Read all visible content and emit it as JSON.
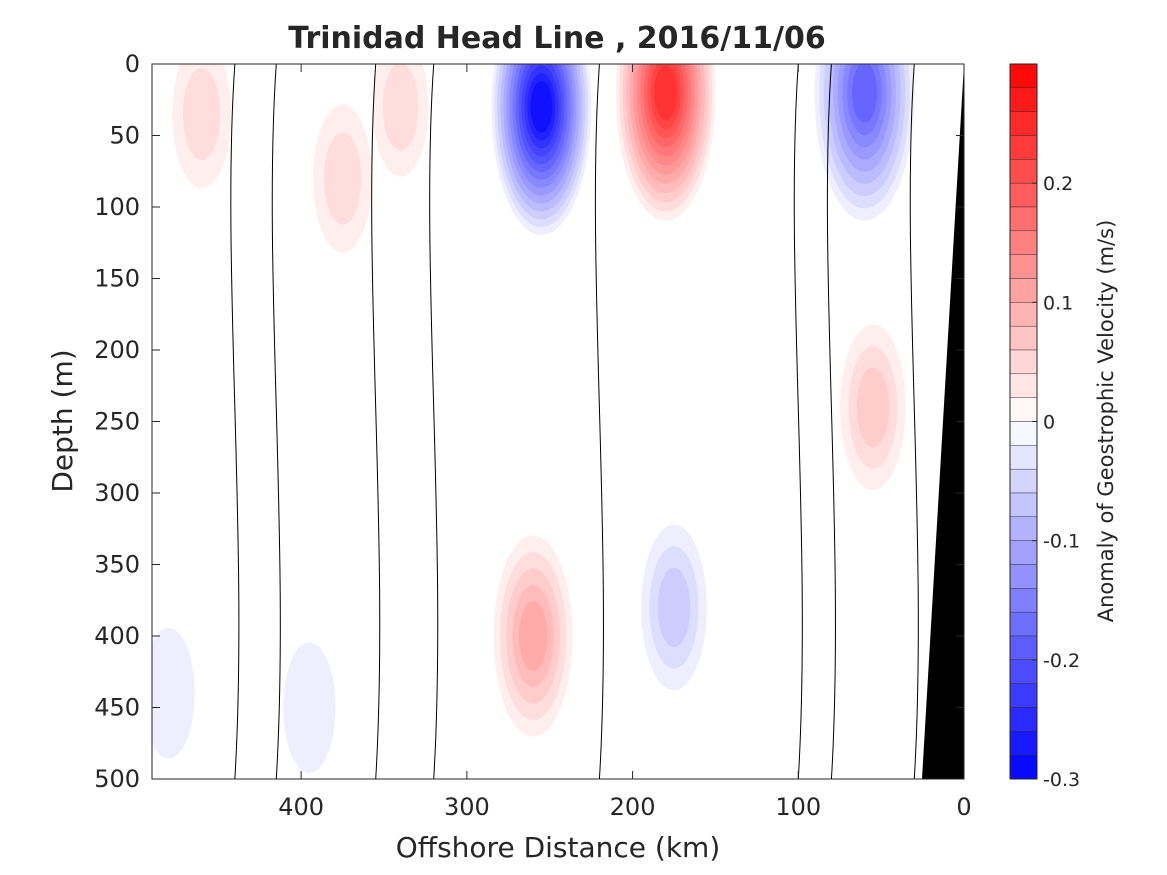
{
  "chart_data": {
    "type": "heatmap",
    "title": "Trinidad Head Line , 2016/11/06",
    "xlabel": "Offshore Distance (km)",
    "ylabel": "Depth (m)",
    "x_reversed": true,
    "y_reversed": true,
    "xlim": [
      0,
      490
    ],
    "ylim": [
      0,
      500
    ],
    "xticks": [
      400,
      300,
      200,
      100,
      0
    ],
    "yticks": [
      0,
      50,
      100,
      150,
      200,
      250,
      300,
      350,
      400,
      450,
      500
    ],
    "colorbar": {
      "label": "Anomaly of Geostrophic Velocity (m/s)",
      "range": [
        -0.3,
        0.3
      ],
      "step": 0.02,
      "ticks": [
        0.2,
        0.1,
        0,
        -0.1,
        -0.2,
        -0.3
      ],
      "tick_labels": [
        "0.2",
        "0.1",
        "0",
        "-0.1",
        "-0.2",
        "-0.3"
      ],
      "colormap": "blue-white-red",
      "low_color": "#0000ff",
      "high_color": "#ff0000",
      "neutral_color": "#ffffff"
    },
    "bathymetry_color": "#000000",
    "cores": [
      {
        "sign": "positive",
        "x_km": 460,
        "depth_m": 35,
        "peak": 0.04
      },
      {
        "sign": "positive",
        "x_km": 375,
        "depth_m": 80,
        "peak": 0.04
      },
      {
        "sign": "positive",
        "x_km": 340,
        "depth_m": 30,
        "peak": 0.03
      },
      {
        "sign": "negative",
        "x_km": 255,
        "depth_m": 30,
        "peak": -0.28
      },
      {
        "sign": "positive",
        "x_km": 180,
        "depth_m": 20,
        "peak": 0.24
      },
      {
        "sign": "negative",
        "x_km": 60,
        "depth_m": 20,
        "peak": -0.18
      },
      {
        "sign": "positive",
        "x_km": 55,
        "depth_m": 240,
        "peak": 0.06
      },
      {
        "sign": "positive",
        "x_km": 260,
        "depth_m": 400,
        "peak": 0.1
      },
      {
        "sign": "negative",
        "x_km": 175,
        "depth_m": 380,
        "peak": -0.06
      },
      {
        "sign": "negative",
        "x_km": 480,
        "depth_m": 440,
        "peak": -0.02
      },
      {
        "sign": "negative",
        "x_km": 395,
        "depth_m": 450,
        "peak": -0.02
      }
    ]
  }
}
